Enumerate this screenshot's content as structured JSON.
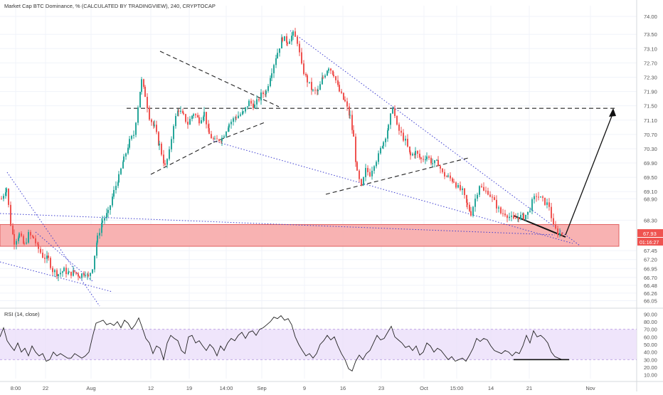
{
  "chart_data": [
    {
      "type": "candlestick",
      "title": "Market Cap BTC Dominance, % (CALCULATED BY TRADINGVIEW), 240, CRYPTOCAP",
      "ylim": [
        65.9,
        74.3
      ],
      "y_ticks": [
        "74.00",
        "73.50",
        "73.10",
        "72.70",
        "72.30",
        "71.90",
        "71.50",
        "71.10",
        "70.70",
        "70.30",
        "69.90",
        "69.50",
        "69.10",
        "68.90",
        "68.30",
        "67.93",
        "67.45",
        "67.20",
        "66.95",
        "66.70",
        "66.48",
        "66.26",
        "66.05"
      ],
      "x_ticks": [
        "8:00",
        "22",
        "Aug",
        "12",
        "19",
        "14:00",
        "Sep",
        "9",
        "16",
        "23",
        "Oct",
        "15:00",
        "14",
        "21",
        "Nov"
      ],
      "last_price_label": "67.93",
      "countdown_label": "01:16:27",
      "close_path": [
        [
          0,
          68.9
        ],
        [
          7,
          69.2
        ],
        [
          13,
          68.2
        ],
        [
          18,
          67.7
        ],
        [
          25,
          67.9
        ],
        [
          32,
          67.6
        ],
        [
          38,
          67.9
        ],
        [
          45,
          67.8
        ],
        [
          52,
          67.5
        ],
        [
          58,
          67.3
        ],
        [
          66,
          67.2
        ],
        [
          72,
          66.9
        ],
        [
          80,
          66.8
        ],
        [
          88,
          66.9
        ],
        [
          95,
          66.8
        ],
        [
          102,
          66.85
        ],
        [
          110,
          66.75
        ],
        [
          118,
          66.85
        ],
        [
          122,
          66.7
        ],
        [
          128,
          67.0
        ],
        [
          135,
          67.8
        ],
        [
          142,
          68.3
        ],
        [
          150,
          68.5
        ],
        [
          158,
          69.1
        ],
        [
          165,
          69.5
        ],
        [
          172,
          70.0
        ],
        [
          180,
          70.5
        ],
        [
          186,
          70.7
        ],
        [
          192,
          71.5
        ],
        [
          197,
          72.2
        ],
        [
          202,
          71.8
        ],
        [
          208,
          71.2
        ],
        [
          215,
          70.9
        ],
        [
          222,
          70.4
        ],
        [
          230,
          69.8
        ],
        [
          236,
          70.2
        ],
        [
          242,
          71.0
        ],
        [
          249,
          71.4
        ],
        [
          256,
          71.2
        ],
        [
          262,
          71.0
        ],
        [
          270,
          71.3
        ],
        [
          278,
          71.1
        ],
        [
          285,
          71.3
        ],
        [
          292,
          70.7
        ],
        [
          300,
          70.5
        ],
        [
          310,
          70.6
        ],
        [
          320,
          71.0
        ],
        [
          330,
          71.2
        ],
        [
          340,
          71.3
        ],
        [
          348,
          71.6
        ],
        [
          356,
          71.5
        ],
        [
          365,
          71.8
        ],
        [
          372,
          71.9
        ],
        [
          380,
          72.5
        ],
        [
          388,
          73.0
        ],
        [
          395,
          73.4
        ],
        [
          402,
          73.3
        ],
        [
          410,
          73.5
        ],
        [
          416,
          73.3
        ],
        [
          422,
          72.6
        ],
        [
          430,
          72.2
        ],
        [
          438,
          71.9
        ],
        [
          445,
          71.9
        ],
        [
          452,
          72.3
        ],
        [
          460,
          72.6
        ],
        [
          467,
          72.4
        ],
        [
          475,
          71.9
        ],
        [
          483,
          71.6
        ],
        [
          490,
          71.2
        ],
        [
          495,
          70.6
        ],
        [
          500,
          69.6
        ],
        [
          506,
          69.2
        ],
        [
          512,
          69.7
        ],
        [
          518,
          69.6
        ],
        [
          524,
          69.9
        ],
        [
          530,
          70.1
        ],
        [
          537,
          70.5
        ],
        [
          544,
          70.9
        ],
        [
          550,
          71.5
        ],
        [
          556,
          70.9
        ],
        [
          562,
          70.7
        ],
        [
          568,
          70.5
        ],
        [
          575,
          70.1
        ],
        [
          582,
          70.2
        ],
        [
          590,
          70.0
        ],
        [
          598,
          70.1
        ],
        [
          606,
          69.9
        ],
        [
          614,
          69.9
        ],
        [
          620,
          69.6
        ],
        [
          628,
          69.5
        ],
        [
          636,
          69.4
        ],
        [
          642,
          69.2
        ],
        [
          648,
          69.1
        ],
        [
          655,
          68.7
        ],
        [
          660,
          68.5
        ],
        [
          666,
          68.9
        ],
        [
          672,
          69.3
        ],
        [
          678,
          69.1
        ],
        [
          684,
          69.1
        ],
        [
          690,
          68.9
        ],
        [
          696,
          68.7
        ],
        [
          702,
          68.5
        ],
        [
          708,
          68.5
        ],
        [
          714,
          68.4
        ],
        [
          720,
          68.3
        ],
        [
          727,
          68.4
        ],
        [
          734,
          68.4
        ],
        [
          740,
          68.5
        ],
        [
          746,
          68.8
        ],
        [
          752,
          69.0
        ],
        [
          758,
          68.9
        ],
        [
          764,
          68.8
        ],
        [
          770,
          68.7
        ],
        [
          776,
          68.1
        ],
        [
          782,
          67.95
        ],
        [
          788,
          67.93
        ]
      ]
    },
    {
      "type": "line",
      "title": "RSI (14, close)",
      "ylim": [
        5,
        95
      ],
      "y_ticks": [
        "90.00",
        "80.00",
        "70.00",
        "60.00",
        "50.00",
        "40.00",
        "30.00",
        "20.00",
        "10.00"
      ],
      "band": [
        30,
        70
      ],
      "values": [
        [
          0,
          60
        ],
        [
          5,
          72
        ],
        [
          10,
          55
        ],
        [
          15,
          48
        ],
        [
          20,
          42
        ],
        [
          25,
          52
        ],
        [
          30,
          40
        ],
        [
          35,
          45
        ],
        [
          40,
          35
        ],
        [
          45,
          48
        ],
        [
          50,
          40
        ],
        [
          55,
          35
        ],
        [
          60,
          38
        ],
        [
          65,
          28
        ],
        [
          70,
          30
        ],
        [
          75,
          40
        ],
        [
          80,
          35
        ],
        [
          85,
          38
        ],
        [
          90,
          35
        ],
        [
          95,
          32
        ],
        [
          100,
          32
        ],
        [
          105,
          38
        ],
        [
          110,
          35
        ],
        [
          115,
          32
        ],
        [
          120,
          35
        ],
        [
          125,
          40
        ],
        [
          130,
          60
        ],
        [
          135,
          78
        ],
        [
          140,
          80
        ],
        [
          145,
          82
        ],
        [
          150,
          76
        ],
        [
          155,
          78
        ],
        [
          160,
          75
        ],
        [
          165,
          80
        ],
        [
          170,
          72
        ],
        [
          175,
          82
        ],
        [
          180,
          78
        ],
        [
          185,
          70
        ],
        [
          190,
          76
        ],
        [
          195,
          85
        ],
        [
          200,
          72
        ],
        [
          205,
          58
        ],
        [
          210,
          52
        ],
        [
          215,
          38
        ],
        [
          220,
          48
        ],
        [
          225,
          45
        ],
        [
          230,
          30
        ],
        [
          235,
          52
        ],
        [
          240,
          62
        ],
        [
          245,
          58
        ],
        [
          250,
          55
        ],
        [
          255,
          42
        ],
        [
          260,
          38
        ],
        [
          265,
          60
        ],
        [
          270,
          62
        ],
        [
          275,
          52
        ],
        [
          280,
          55
        ],
        [
          285,
          48
        ],
        [
          290,
          42
        ],
        [
          295,
          50
        ],
        [
          300,
          45
        ],
        [
          305,
          35
        ],
        [
          310,
          48
        ],
        [
          315,
          42
        ],
        [
          320,
          52
        ],
        [
          325,
          58
        ],
        [
          330,
          55
        ],
        [
          335,
          62
        ],
        [
          340,
          66
        ],
        [
          345,
          58
        ],
        [
          350,
          66
        ],
        [
          355,
          68
        ],
        [
          360,
          62
        ],
        [
          365,
          70
        ],
        [
          370,
          72
        ],
        [
          375,
          76
        ],
        [
          380,
          80
        ],
        [
          385,
          86
        ],
        [
          390,
          84
        ],
        [
          395,
          88
        ],
        [
          400,
          82
        ],
        [
          405,
          84
        ],
        [
          410,
          76
        ],
        [
          415,
          60
        ],
        [
          420,
          50
        ],
        [
          425,
          42
        ],
        [
          430,
          35
        ],
        [
          435,
          38
        ],
        [
          440,
          32
        ],
        [
          445,
          38
        ],
        [
          450,
          50
        ],
        [
          455,
          55
        ],
        [
          460,
          62
        ],
        [
          465,
          56
        ],
        [
          470,
          60
        ],
        [
          475,
          48
        ],
        [
          480,
          38
        ],
        [
          485,
          30
        ],
        [
          490,
          18
        ],
        [
          495,
          15
        ],
        [
          500,
          28
        ],
        [
          505,
          36
        ],
        [
          510,
          30
        ],
        [
          515,
          38
        ],
        [
          520,
          42
        ],
        [
          525,
          52
        ],
        [
          530,
          62
        ],
        [
          535,
          56
        ],
        [
          540,
          58
        ],
        [
          545,
          66
        ],
        [
          550,
          74
        ],
        [
          555,
          60
        ],
        [
          560,
          56
        ],
        [
          565,
          52
        ],
        [
          570,
          46
        ],
        [
          575,
          48
        ],
        [
          580,
          42
        ],
        [
          585,
          48
        ],
        [
          590,
          36
        ],
        [
          595,
          40
        ],
        [
          600,
          52
        ],
        [
          605,
          48
        ],
        [
          610,
          40
        ],
        [
          615,
          45
        ],
        [
          620,
          42
        ],
        [
          625,
          36
        ],
        [
          630,
          30
        ],
        [
          635,
          34
        ],
        [
          640,
          28
        ],
        [
          645,
          30
        ],
        [
          650,
          32
        ],
        [
          655,
          28
        ],
        [
          660,
          36
        ],
        [
          665,
          45
        ],
        [
          670,
          58
        ],
        [
          675,
          54
        ],
        [
          680,
          58
        ],
        [
          685,
          56
        ],
        [
          690,
          48
        ],
        [
          695,
          42
        ],
        [
          700,
          40
        ],
        [
          705,
          38
        ],
        [
          710,
          42
        ],
        [
          715,
          40
        ],
        [
          720,
          35
        ],
        [
          725,
          40
        ],
        [
          730,
          38
        ],
        [
          735,
          48
        ],
        [
          740,
          62
        ],
        [
          745,
          52
        ],
        [
          750,
          68
        ],
        [
          755,
          60
        ],
        [
          760,
          62
        ],
        [
          765,
          58
        ],
        [
          770,
          52
        ],
        [
          775,
          40
        ],
        [
          780,
          34
        ],
        [
          785,
          32
        ],
        [
          790,
          30
        ]
      ]
    }
  ]
}
